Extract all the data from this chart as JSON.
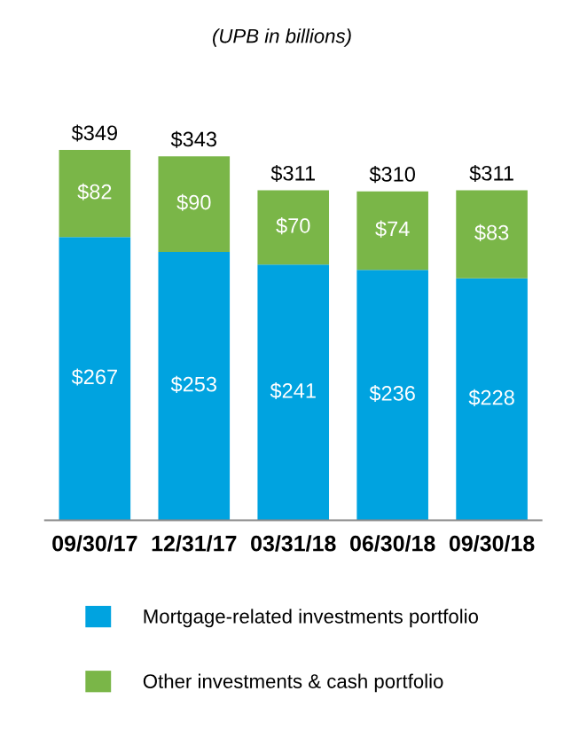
{
  "chart_data": {
    "type": "bar",
    "subtitle": "(UPB in billions)",
    "stacked": true,
    "categories": [
      "09/30/17",
      "12/31/17",
      "03/31/18",
      "06/30/18",
      "09/30/18"
    ],
    "series": [
      {
        "name": "Mortgage-related investments portfolio",
        "color": "#00a3e0",
        "values": [
          267,
          253,
          241,
          236,
          228
        ],
        "value_labels": [
          "$267",
          "$253",
          "$241",
          "$236",
          "$228"
        ]
      },
      {
        "name": "Other investments & cash portfolio",
        "color": "#7ab648",
        "values": [
          82,
          90,
          70,
          74,
          83
        ],
        "value_labels": [
          "$82",
          "$90",
          "$70",
          "$74",
          "$83"
        ]
      }
    ],
    "totals": [
      "$349",
      "$343",
      "$311",
      "$310",
      "$311"
    ],
    "legend": "bottom",
    "grid": false
  }
}
